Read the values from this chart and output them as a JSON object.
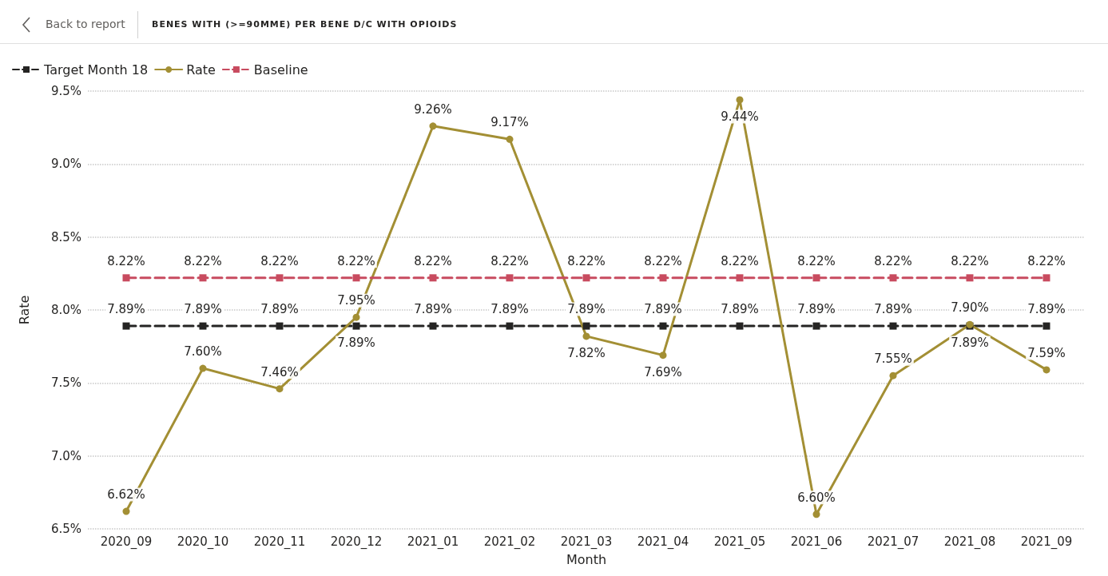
{
  "chart_data": {
    "type": "line",
    "title": "BENES WITH (>=90MME) PER BENE D/C WITH OPIOIDS",
    "annotations": [
      "Back to report"
    ],
    "xlabel": "Month",
    "ylabel": "Rate",
    "categories": [
      "2020_09",
      "2020_10",
      "2020_11",
      "2020_12",
      "2021_01",
      "2021_02",
      "2021_03",
      "2021_04",
      "2021_05",
      "2021_06",
      "2021_07",
      "2021_08",
      "2021_09"
    ],
    "series": [
      {
        "name": "Target Month 18",
        "color": "#252423",
        "marker": "square",
        "line_style": "dashed",
        "values": [
          7.89,
          7.89,
          7.89,
          7.89,
          7.89,
          7.89,
          7.89,
          7.89,
          7.89,
          7.89,
          7.89,
          7.89,
          7.89
        ],
        "value_labels": [
          "7.89%",
          "7.89%",
          "7.89%",
          "7.89%",
          "7.89%",
          "7.89%",
          "7.89%",
          "7.89%",
          "7.89%",
          "7.89%",
          "7.89%",
          "7.89%",
          "7.89%"
        ]
      },
      {
        "name": "Rate",
        "color": "#a38f34",
        "marker": "circle",
        "line_style": "solid",
        "values": [
          6.62,
          7.6,
          7.46,
          7.95,
          9.26,
          9.17,
          7.82,
          7.69,
          9.44,
          6.6,
          7.55,
          7.9,
          7.59
        ],
        "value_labels": [
          "6.62%",
          "7.60%",
          "7.46%",
          "7.95%",
          "9.26%",
          "9.17%",
          "7.82%",
          "7.69%",
          "9.44%",
          "6.60%",
          "7.55%",
          "7.90%",
          "7.59%"
        ]
      },
      {
        "name": "Baseline",
        "color": "#c84b5f",
        "marker": "square",
        "line_style": "dashed",
        "values": [
          8.22,
          8.22,
          8.22,
          8.22,
          8.22,
          8.22,
          8.22,
          8.22,
          8.22,
          8.22,
          8.22,
          8.22,
          8.22
        ],
        "value_labels": [
          "8.22%",
          "8.22%",
          "8.22%",
          "8.22%",
          "8.22%",
          "8.22%",
          "8.22%",
          "8.22%",
          "8.22%",
          "8.22%",
          "8.22%",
          "8.22%",
          "8.22%"
        ]
      }
    ],
    "ylim": [
      6.5,
      9.5
    ],
    "yticks": [
      {
        "value": 6.5,
        "label": "6.5%"
      },
      {
        "value": 7.0,
        "label": "7.0%"
      },
      {
        "value": 7.5,
        "label": "7.5%"
      },
      {
        "value": 8.0,
        "label": "8.0%"
      },
      {
        "value": 8.5,
        "label": "8.5%"
      },
      {
        "value": 9.0,
        "label": "9.0%"
      },
      {
        "value": 9.5,
        "label": "9.5%"
      }
    ],
    "grid": "y",
    "legend": "top left"
  }
}
